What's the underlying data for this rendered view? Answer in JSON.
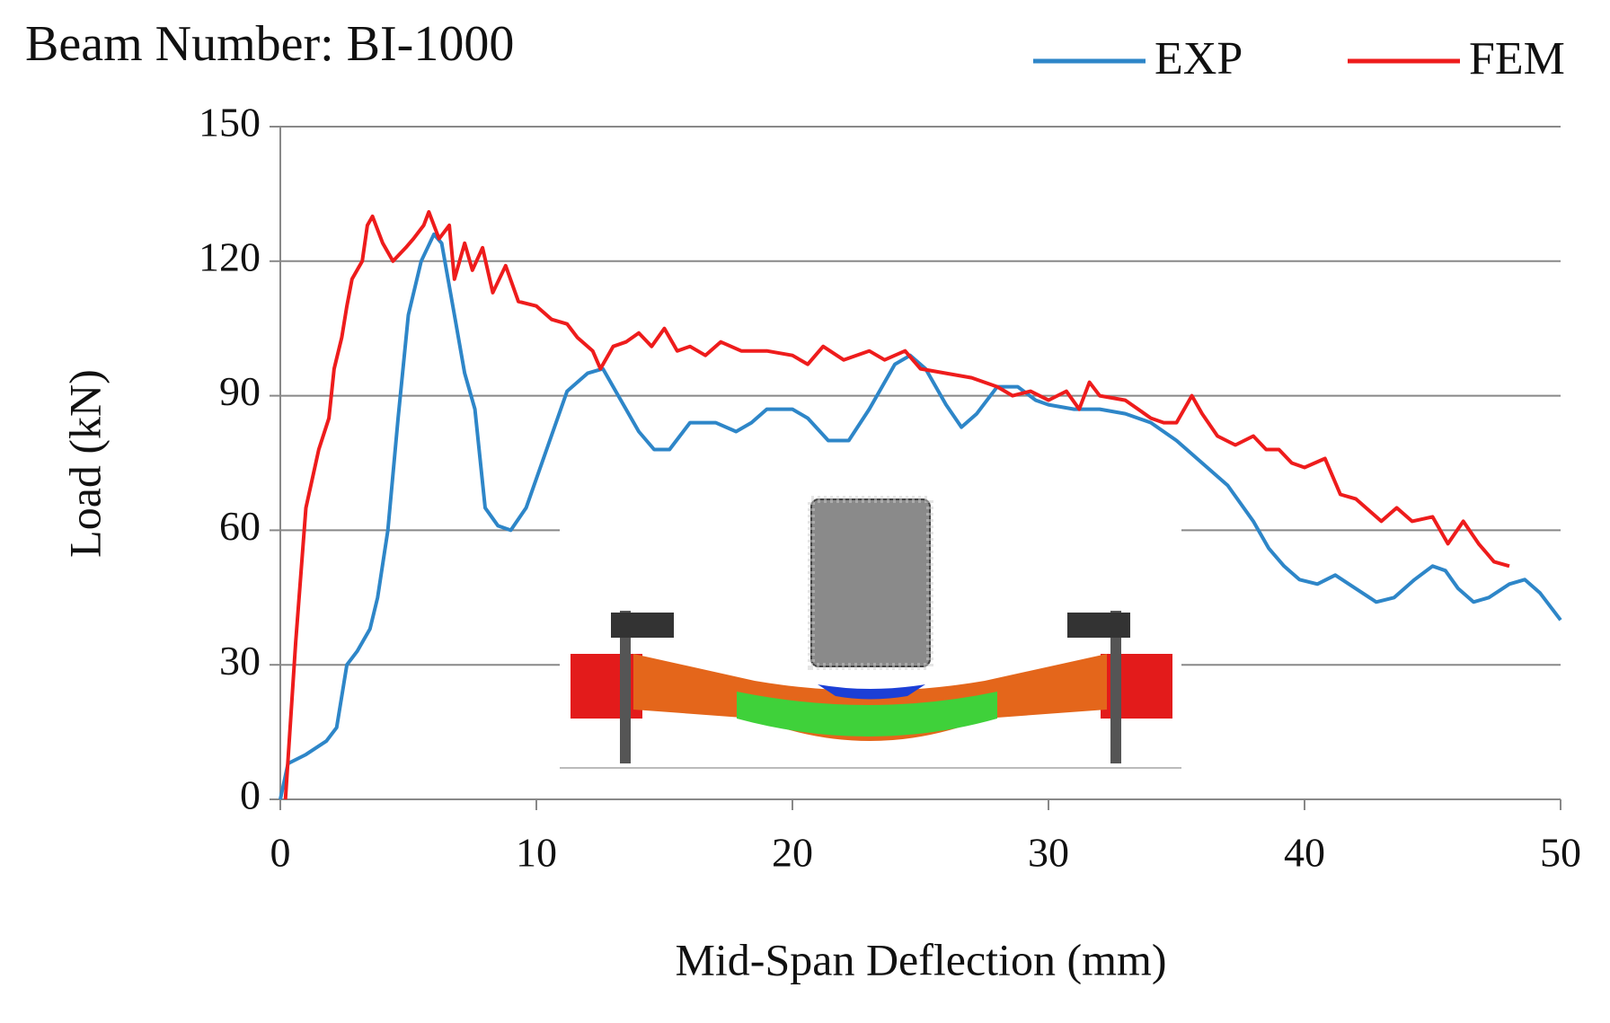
{
  "chart_data": {
    "type": "line",
    "title": "Beam Number: BI-1000",
    "x_label": "Mid-Span Deflection (mm)",
    "y_label": "Load (kN)",
    "xlim": [
      0,
      50
    ],
    "xticks": [
      0,
      10,
      20,
      30,
      40,
      50
    ],
    "ylim": [
      0,
      150
    ],
    "yticks": [
      0,
      30,
      60,
      90,
      120,
      150
    ],
    "grid": true,
    "legend": "top-right",
    "series": [
      {
        "name": "EXP",
        "color": "#2e86c8",
        "x": [
          0,
          0.3,
          1,
          1.8,
          2.2,
          2.6,
          3,
          3.5,
          3.8,
          4.2,
          4.6,
          5,
          5.5,
          6,
          6.3,
          6.8,
          7.2,
          7.6,
          8,
          8.5,
          9,
          9.6,
          10.4,
          11.2,
          12,
          12.6,
          13.2,
          14,
          14.6,
          15.2,
          16,
          17,
          17.8,
          18.4,
          19,
          20,
          20.6,
          21.4,
          22.2,
          23,
          24,
          24.6,
          25.2,
          26,
          26.6,
          27.2,
          28,
          28.8,
          29.5,
          30,
          31,
          32,
          33,
          34,
          35,
          36,
          37,
          38,
          38.6,
          39.2,
          39.8,
          40.5,
          41.2,
          42,
          42.8,
          43.5,
          44.3,
          45,
          45.5,
          46,
          46.6,
          47.2,
          48,
          48.6,
          49.2,
          50
        ],
        "values": [
          0,
          8,
          10,
          13,
          16,
          30,
          33,
          38,
          45,
          60,
          85,
          108,
          120,
          126,
          124,
          108,
          95,
          87,
          65,
          61,
          60,
          65,
          78,
          91,
          95,
          96,
          90,
          82,
          78,
          78,
          84,
          84,
          82,
          84,
          87,
          87,
          85,
          80,
          80,
          87,
          97,
          99,
          96,
          88,
          83,
          86,
          92,
          92,
          89,
          88,
          87,
          87,
          86,
          84,
          80,
          75,
          70,
          62,
          56,
          52,
          49,
          48,
          50,
          47,
          44,
          45,
          49,
          52,
          51,
          47,
          44,
          45,
          48,
          49,
          46,
          40
        ]
      },
      {
        "name": "FEM",
        "color": "#ee1c1c",
        "x": [
          0.2,
          0.6,
          1,
          1.5,
          1.9,
          2.1,
          2.4,
          2.6,
          2.8,
          3.2,
          3.4,
          3.6,
          4,
          4.4,
          4.9,
          5.2,
          5.6,
          5.8,
          6.2,
          6.6,
          6.8,
          7.2,
          7.5,
          7.9,
          8.3,
          8.8,
          9.3,
          10,
          10.6,
          11.2,
          11.6,
          12.2,
          12.5,
          13,
          13.5,
          14,
          14.5,
          15,
          15.5,
          16,
          16.6,
          17.2,
          17.6,
          18,
          19,
          20,
          20.6,
          21.2,
          22,
          23,
          23.6,
          24.4,
          25,
          26,
          27,
          28,
          28.6,
          29.3,
          30,
          30.7,
          31.2,
          31.6,
          32,
          33,
          34,
          34.5,
          35,
          35.6,
          36,
          36.6,
          37.3,
          38,
          38.5,
          39,
          39.5,
          40,
          40.8,
          41.4,
          42,
          42.6,
          43,
          43.6,
          44.2,
          45,
          45.6,
          46.2,
          46.8,
          47.4,
          48
        ],
        "values": [
          0,
          35,
          65,
          78,
          85,
          96,
          103,
          110,
          116,
          120,
          128,
          130,
          124,
          120,
          123,
          125,
          128,
          131,
          125,
          128,
          116,
          124,
          118,
          123,
          113,
          119,
          111,
          110,
          107,
          106,
          103,
          100,
          96,
          101,
          102,
          104,
          101,
          105,
          100,
          101,
          99,
          102,
          101,
          100,
          100,
          99,
          97,
          101,
          98,
          100,
          98,
          100,
          96,
          95,
          94,
          92,
          90,
          91,
          89,
          91,
          87,
          93,
          90,
          89,
          85,
          84,
          84,
          90,
          86,
          81,
          79,
          81,
          78,
          78,
          75,
          74,
          76,
          68,
          67,
          64,
          62,
          65,
          62,
          63,
          57,
          62,
          57,
          53,
          52
        ]
      }
    ]
  }
}
